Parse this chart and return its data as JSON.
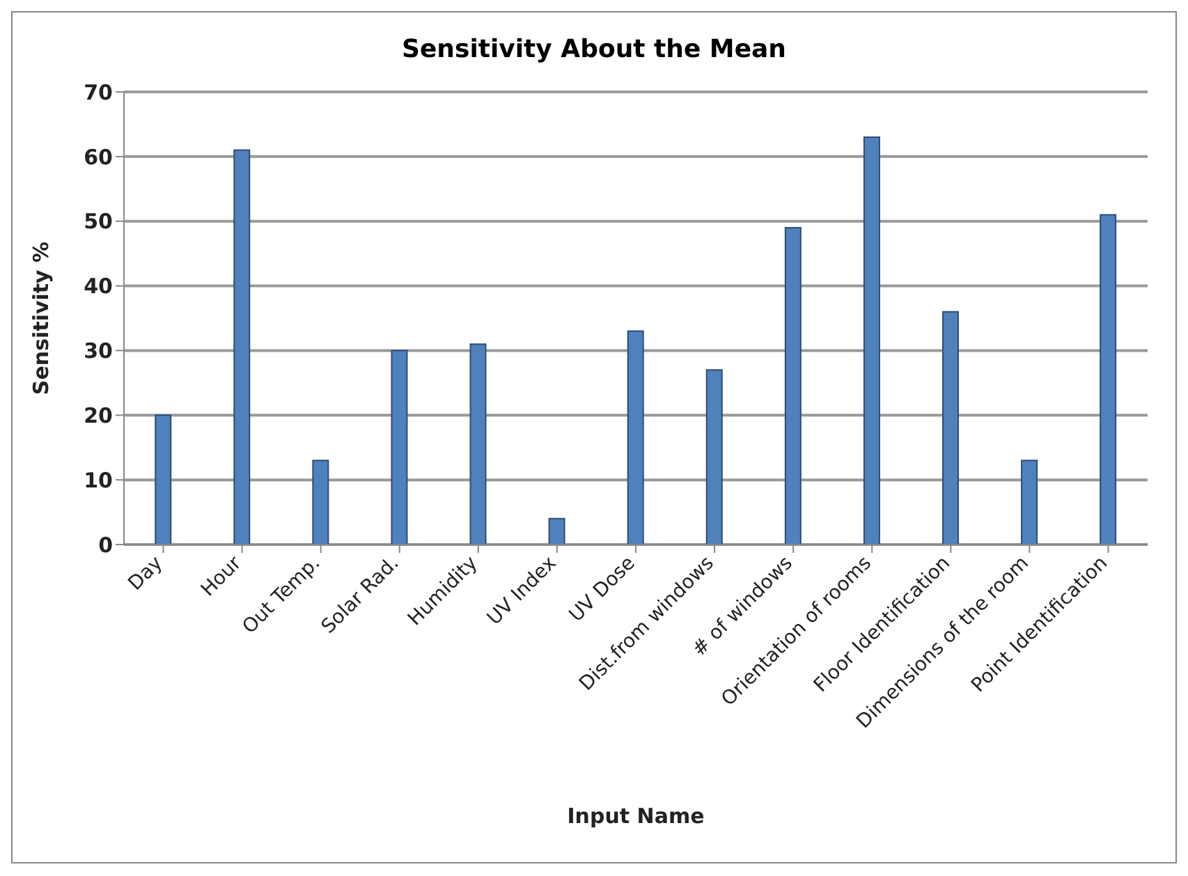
{
  "chart_data": {
    "type": "bar",
    "title": "Sensitivity About the Mean",
    "xlabel": "Input Name",
    "ylabel": "Sensitivity  %",
    "categories": [
      "Day",
      "Hour",
      "Out Temp.",
      "Solar Rad.",
      "Humidity",
      "UV Index",
      "UV Dose",
      "Dist.from windows",
      "# of windows",
      "Orientation of rooms",
      "Floor Identification",
      "Dimensions of the room",
      "Point Identification"
    ],
    "values": [
      20,
      61,
      13,
      30,
      31,
      4,
      33,
      27,
      49,
      63,
      36,
      13,
      51
    ],
    "color": "#4f81bd",
    "ylim": [
      0,
      70
    ],
    "yticks": [
      0,
      10,
      20,
      30,
      40,
      50,
      60,
      70
    ],
    "grid": "y",
    "legend": false
  }
}
